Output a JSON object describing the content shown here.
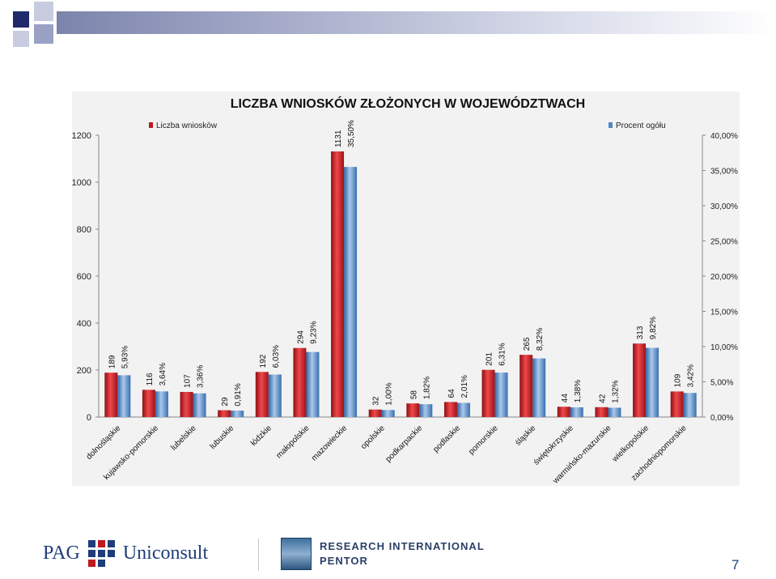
{
  "chart_data": {
    "type": "bar",
    "title": "LICZBA WNIOSKÓW ZŁOŻONYCH W WOJEWÓDZTWACH",
    "categories": [
      "dolnośląskie",
      "kujawsko-pomorskie",
      "lubelskie",
      "lubuskie",
      "łódzkie",
      "małopolskie",
      "mazowieckie",
      "opolskie",
      "podkarpackie",
      "podlaskie",
      "pomorskie",
      "śląskie",
      "świętokrzyskie",
      "warmińsko-mazurskie",
      "wielkopolskie",
      "zachodniopomorskie"
    ],
    "series": [
      {
        "name": "Liczba wniosków",
        "axis": "left",
        "color": "#c0191e",
        "values": [
          189,
          116,
          107,
          29,
          192,
          294,
          1131,
          32,
          58,
          64,
          201,
          265,
          44,
          42,
          313,
          109
        ],
        "labels": [
          "189",
          "116",
          "107",
          "29",
          "192",
          "294",
          "1131",
          "32",
          "58",
          "64",
          "201",
          "265",
          "44",
          "42",
          "313",
          "109"
        ]
      },
      {
        "name": "Procent ogółu",
        "axis": "right",
        "color": "#4f86c6",
        "values": [
          5.93,
          3.64,
          3.36,
          0.91,
          6.03,
          9.23,
          35.5,
          1.0,
          1.82,
          2.01,
          6.31,
          8.32,
          1.38,
          1.32,
          9.82,
          3.42
        ],
        "labels": [
          "5,93%",
          "3,64%",
          "3,36%",
          "0,91%",
          "6,03%",
          "9,23%",
          "35,50%",
          "1,00%",
          "1,82%",
          "2,01%",
          "6,31%",
          "8,32%",
          "1,38%",
          "1,32%",
          "9,82%",
          "3,42%"
        ]
      }
    ],
    "ylim_left": [
      0,
      1200
    ],
    "ylim_right": [
      0,
      40
    ],
    "left_ticks": [
      "0",
      "200",
      "400",
      "600",
      "800",
      "1000",
      "1200"
    ],
    "right_ticks": [
      "0,00%",
      "5,00%",
      "10,00%",
      "15,00%",
      "20,00%",
      "25,00%",
      "30,00%",
      "35,00%",
      "40,00%"
    ],
    "legend_placement": "top",
    "grid": false
  },
  "footer": {
    "pag_left": "PAG",
    "pag_right": "Uniconsult",
    "ri_line1": "RESEARCH INTERNATIONAL",
    "ri_line2": "PENTOR",
    "page_number": "7"
  },
  "colors": {
    "header_bar": "#7c84ac",
    "dark_square": "#1f2a6b",
    "light_square": "#aab0cc"
  }
}
